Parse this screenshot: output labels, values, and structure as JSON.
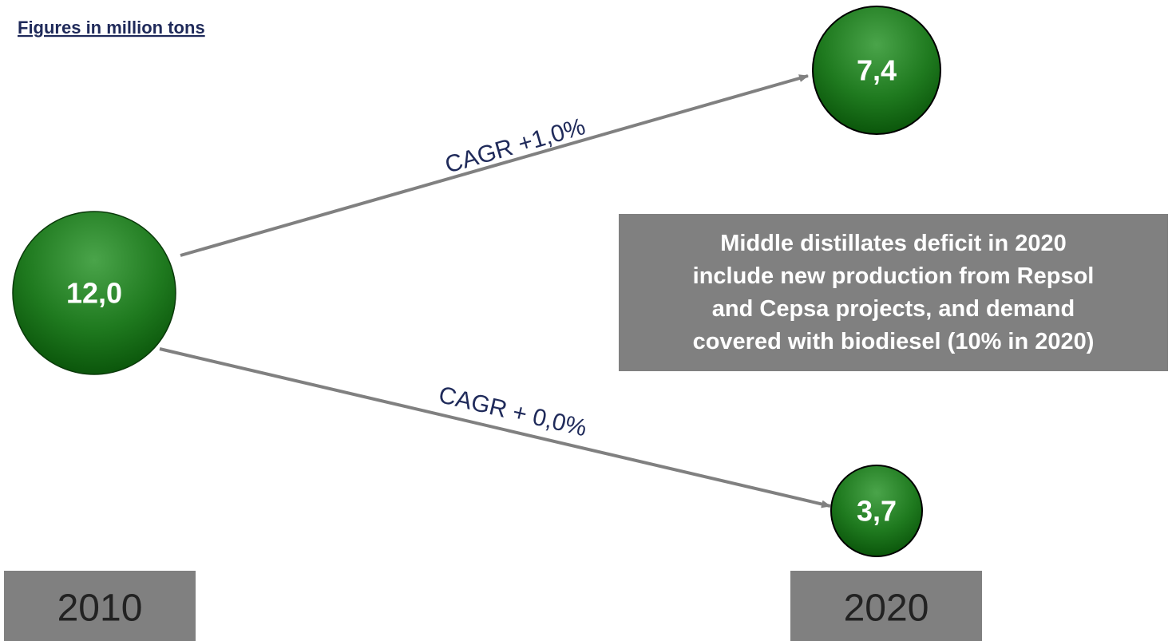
{
  "header": {
    "title": "Figures in million tons"
  },
  "nodes": [
    {
      "label": "12,0"
    },
    {
      "label": "7,4"
    },
    {
      "label": "3,7"
    }
  ],
  "edges": [
    {
      "label": "CAGR +1,0%"
    },
    {
      "label": "CAGR + 0,0%"
    }
  ],
  "note": {
    "lines": [
      "Middle distillates deficit in 2020",
      "include new production from Repsol",
      "and Cepsa projects, and demand",
      "covered with biodiesel  (10% in 2020)"
    ]
  },
  "years": [
    "2010",
    "2020"
  ]
}
